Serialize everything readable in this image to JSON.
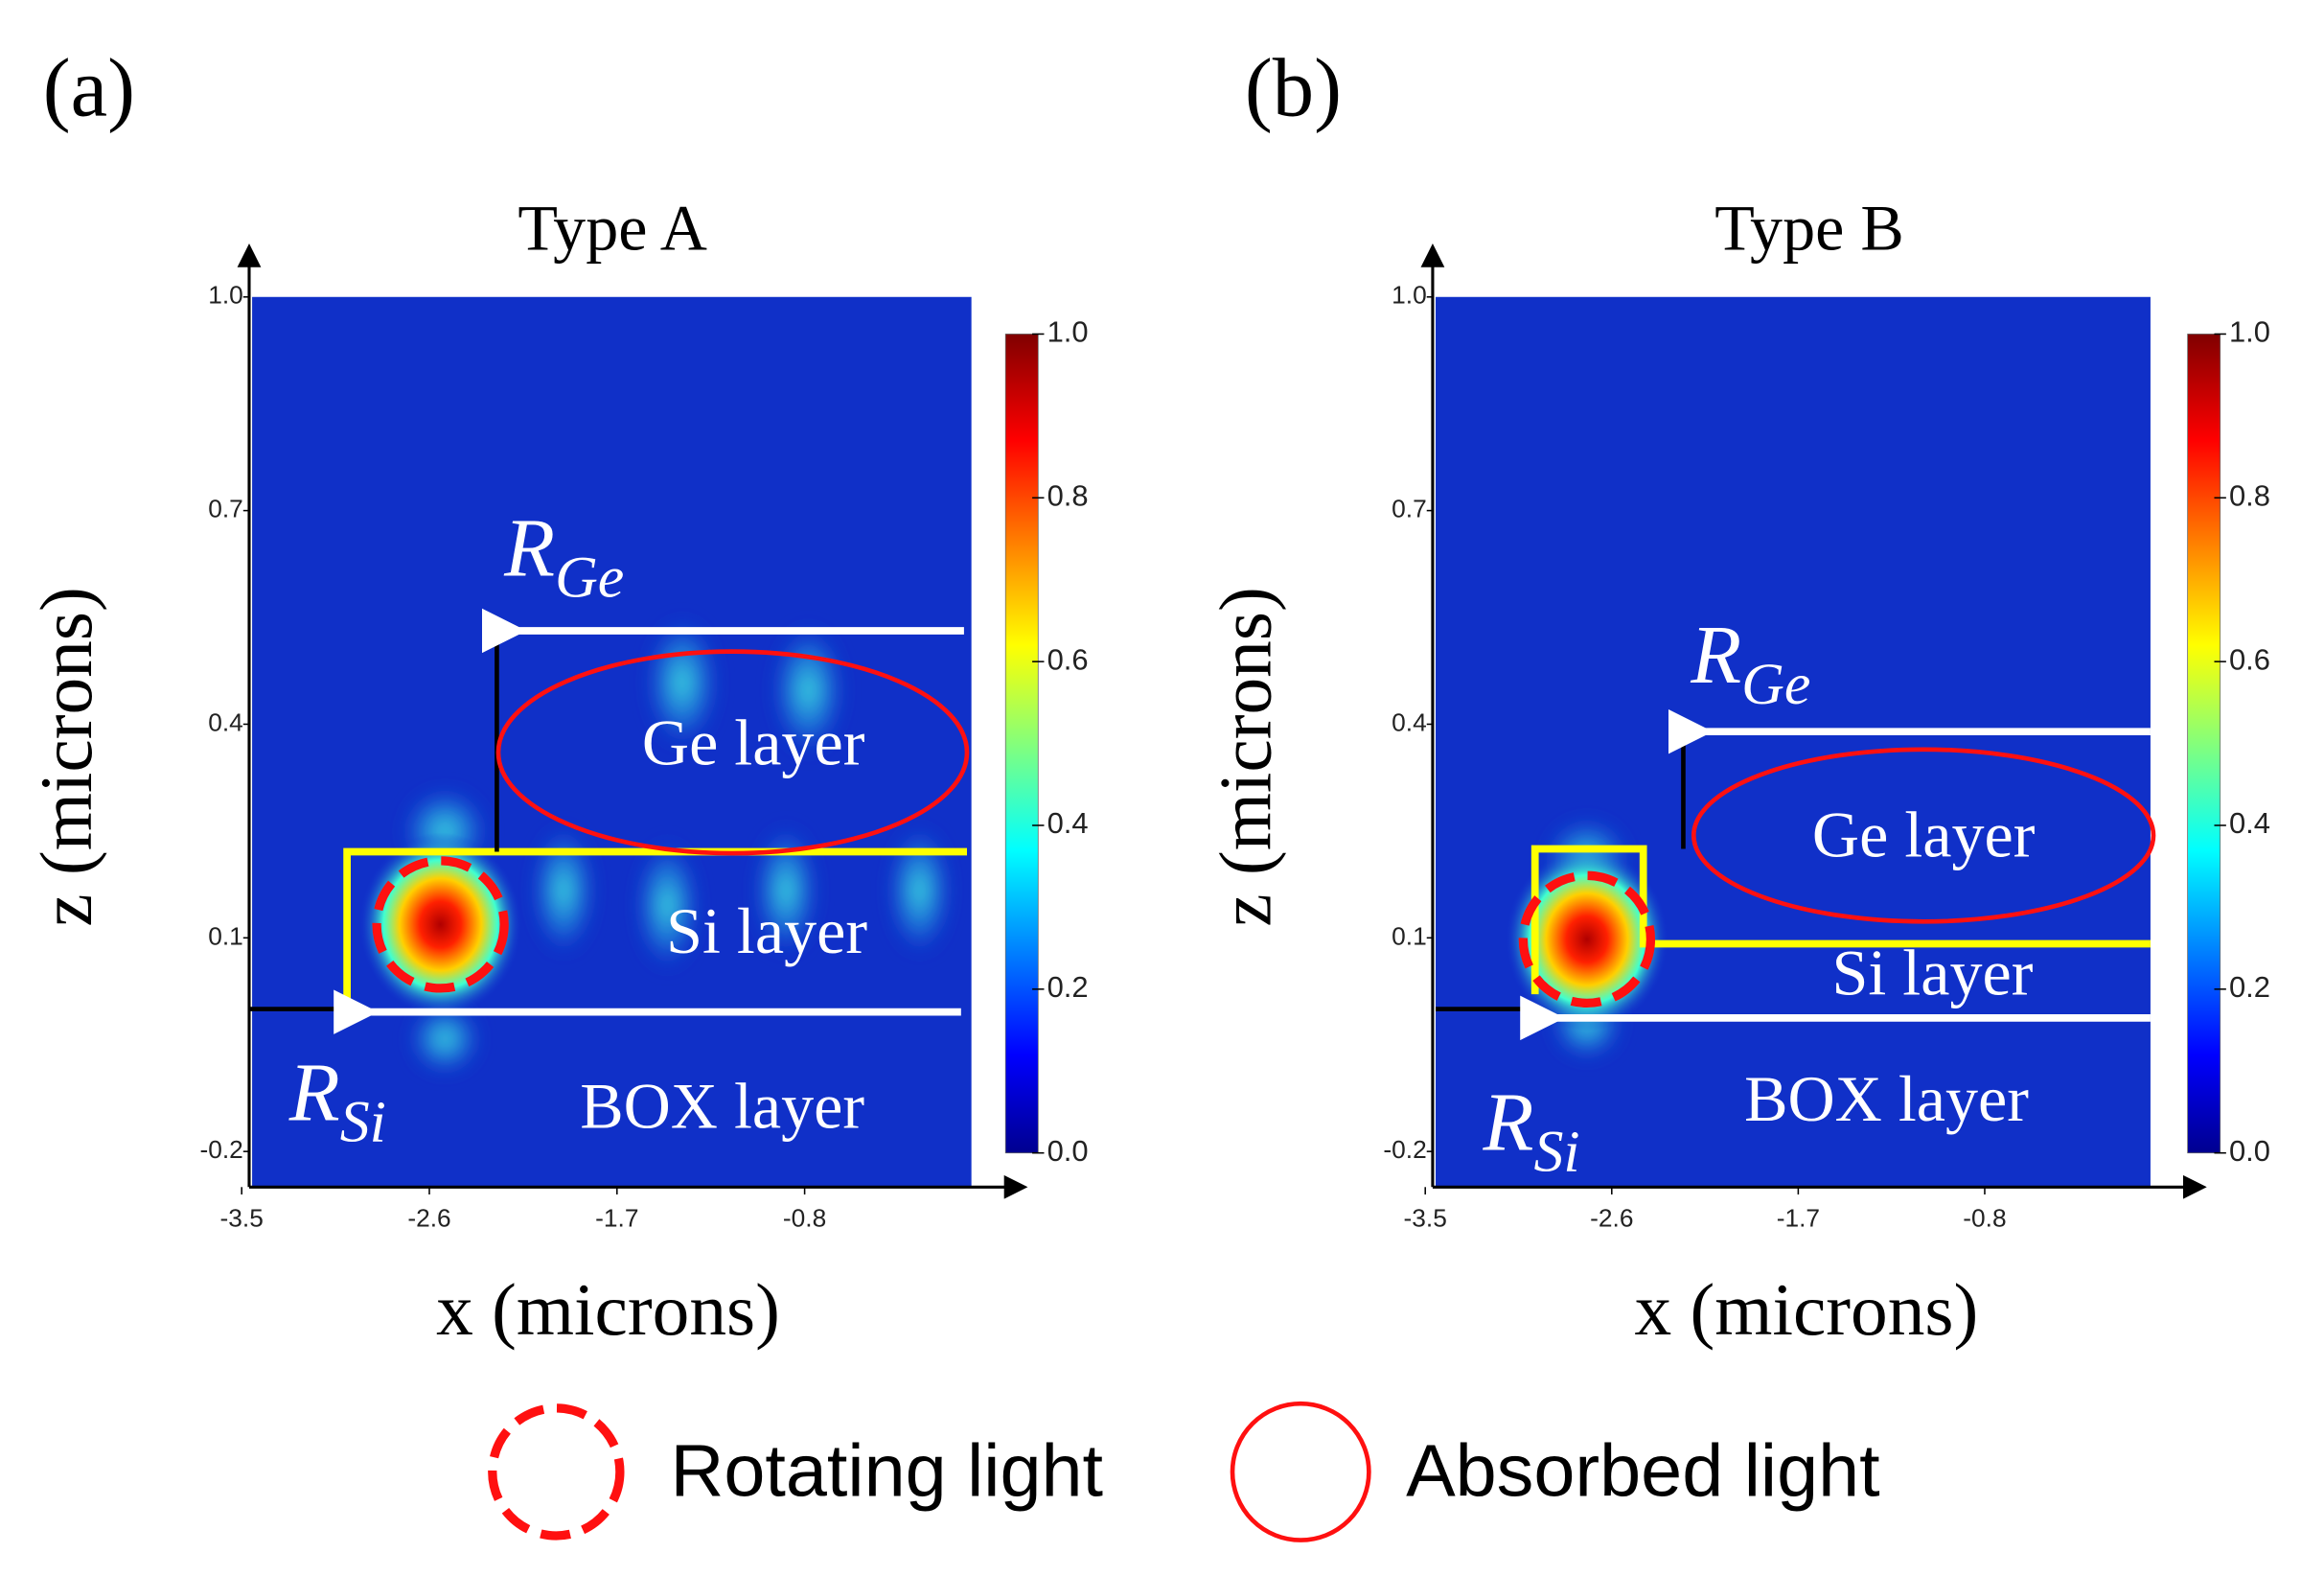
{
  "chart_data": [
    {
      "type": "heatmap",
      "panel": "(a)",
      "title": "Type A",
      "xlabel": "x (microns)",
      "ylabel": "z (microns)",
      "xlim": [
        -3.45,
        0
      ],
      "ylim": [
        -0.25,
        1.0
      ],
      "xticks": [
        -3.5,
        -2.6,
        -1.7,
        -0.8
      ],
      "yticks": [
        {
          "value": 1.0,
          "label": "1.0"
        },
        0.7,
        0.4,
        0.1,
        -0.2
      ],
      "colorbar": {
        "lim": [
          0,
          1
        ],
        "ticks": [
          {
            "value": 1.0,
            "label": "1.0"
          },
          0.8,
          0.6,
          0.4,
          0.2,
          {
            "value": 0.0,
            "label": "0.0"
          }
        ]
      },
      "r_ge": {
        "letter": "R",
        "sub": "Ge"
      },
      "r_si": {
        "letter": "R",
        "sub": "Si"
      },
      "layers": [
        "Ge layer",
        "Si layer",
        "BOX layer"
      ]
    },
    {
      "type": "heatmap",
      "panel": "(b)",
      "title": "Type B",
      "xlabel": "x (microns)",
      "ylabel": "z (microns)",
      "xlim": [
        -3.45,
        0
      ],
      "ylim": [
        -0.25,
        1.0
      ],
      "xticks": [
        -3.5,
        -2.6,
        -1.7,
        -0.8
      ],
      "yticks": [
        {
          "value": 1.0,
          "label": "1.0"
        },
        0.7,
        0.4,
        0.1,
        -0.2
      ],
      "colorbar": {
        "lim": [
          0,
          1
        ],
        "ticks": [
          {
            "value": 1.0,
            "label": "1.0"
          },
          0.8,
          0.6,
          0.4,
          0.2,
          {
            "value": 0.0,
            "label": "0.0"
          }
        ]
      },
      "r_ge": {
        "letter": "R",
        "sub": "Ge"
      },
      "r_si": {
        "letter": "R",
        "sub": "Si"
      },
      "layers": [
        "Ge layer",
        "Si layer",
        "BOX layer"
      ]
    }
  ],
  "legend": [
    "Rotating light",
    "Absorbed light"
  ]
}
